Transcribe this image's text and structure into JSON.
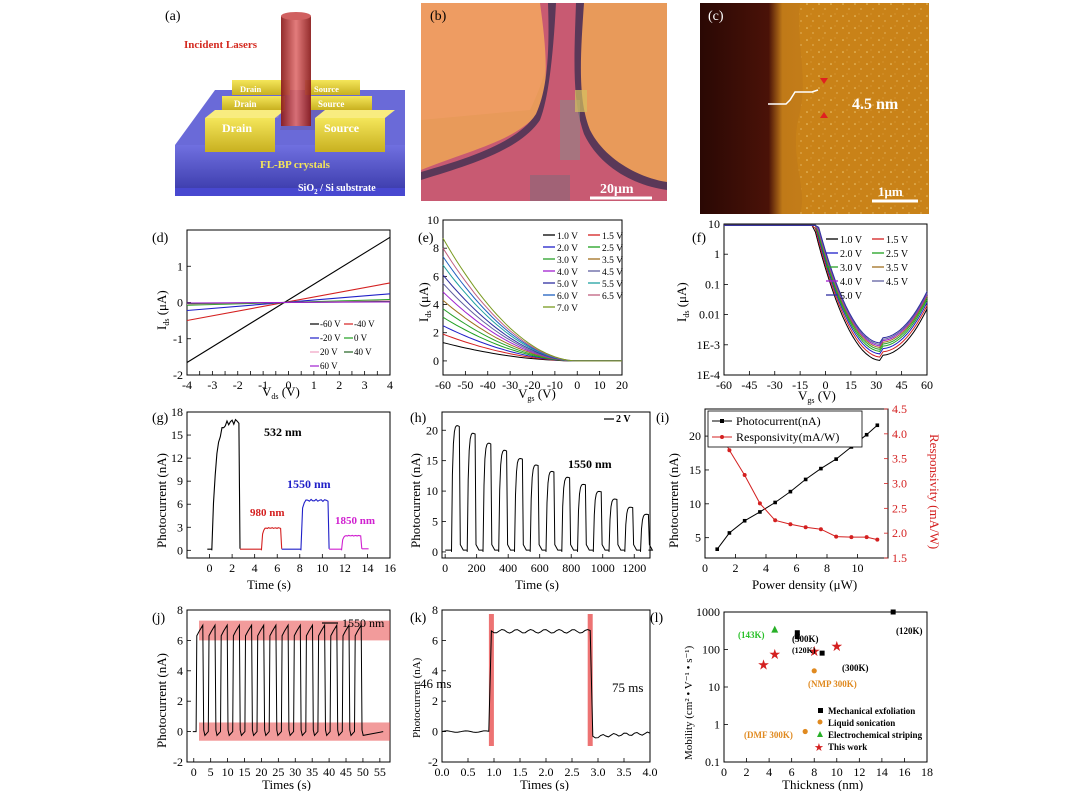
{
  "panels": {
    "a": {
      "letter": "(a)",
      "incident": "Incident Lasers",
      "drain": "Drain",
      "source": "Source",
      "crystal": "FL-BP crystals",
      "substrate_pre": "SiO",
      "substrate_sub": "2",
      "substrate_post": " / Si substrate",
      "colors": {
        "laser": "#b03030",
        "gold": "#e6d23a",
        "substrate": "#5a5ad8",
        "label_red": "#d42a20"
      }
    },
    "b": {
      "letter": "(b)",
      "scalebar": "20μm",
      "colors": {
        "bg": "#e89a5a",
        "flake": "#c85a72"
      }
    },
    "c": {
      "letter": "(c)",
      "thickness": "4.5 nm",
      "scalebar": "1μm",
      "colors": {
        "dark": "#3a0a06",
        "bright": "#c8801a"
      }
    },
    "d": {
      "letter": "(d)",
      "xlabel_main": "V",
      "xlabel_sub": "ds",
      "xlabel_unit": " (V)",
      "ylabel_main": "I",
      "ylabel_sub": "ds",
      "ylabel_unit": " (μA)"
    },
    "e": {
      "letter": "(e)",
      "xlabel_main": "V",
      "xlabel_sub": "gs",
      "xlabel_unit": " (V)",
      "ylabel_main": "I",
      "ylabel_sub": "ds",
      "ylabel_unit": " (μA)"
    },
    "f": {
      "letter": "(f)",
      "xlabel_main": "V",
      "xlabel_sub": "gs",
      "xlabel_unit": " (V)",
      "ylabel_main": "I",
      "ylabel_sub": "ds",
      "ylabel_unit": " (μA)"
    },
    "g": {
      "letter": "(g)",
      "xlabel": "Time (s)",
      "ylabel": "Photocurrent (nA)",
      "annotations": [
        {
          "text": "532 nm",
          "color": "#000000"
        },
        {
          "text": "980 nm",
          "color": "#d42020"
        },
        {
          "text": "1550 nm",
          "color": "#2020c8"
        },
        {
          "text": "1850 nm",
          "color": "#d020d0"
        }
      ]
    },
    "h": {
      "letter": "(h)",
      "xlabel": "Time (s)",
      "ylabel": "Photocurrent (nA)",
      "legend": "2 V",
      "annotation": "1550 nm"
    },
    "i": {
      "letter": "(i)",
      "xlabel": "Power density (μW)",
      "ylabel": "Photocurrent (nA)",
      "ylabel_right": "Responsivity (mA/W)",
      "legend": [
        "Photocurrent(nA)",
        "Responsivity(mA/W)"
      ]
    },
    "j": {
      "letter": "(j)",
      "xlabel": "Times (s)",
      "ylabel": "Photocurrent (nA)",
      "legend": "1550 nm"
    },
    "k": {
      "letter": "(k)",
      "xlabel": "Times (s)",
      "ylabel": "Photocurrent (nA)",
      "rise": "46 ms",
      "fall": "75 ms"
    },
    "l": {
      "letter": "(l)",
      "xlabel": "Thickness (nm)",
      "ylabel": "Mobility (cm² • V⁻¹ • s⁻¹)",
      "legend": [
        {
          "text": "Mechanical exfoliation",
          "color": "#000000",
          "marker": "square"
        },
        {
          "text": "Liquid sonication",
          "color": "#e08a20",
          "marker": "circle"
        },
        {
          "text": "Electrochemical striping",
          "color": "#28b028",
          "marker": "triangle"
        },
        {
          "text": "This work",
          "color": "#d42020",
          "marker": "star"
        }
      ],
      "annotations": [
        {
          "text": "(143K)",
          "color": "#28c028"
        },
        {
          "text": "(300K)",
          "color": "#000000"
        },
        {
          "text": "(120K)",
          "color": "#000000"
        },
        {
          "text": "(300K)",
          "color": "#000000"
        },
        {
          "text": "(120K)",
          "color": "#000000"
        },
        {
          "text": "(NMP 300K)",
          "color": "#e08a20"
        },
        {
          "text": "(DMF 300K)",
          "color": "#e08a20"
        }
      ]
    }
  },
  "chart_data": [
    {
      "id": "d",
      "type": "line",
      "xlim": [
        -4,
        4
      ],
      "ylim": [
        -2,
        2
      ],
      "xticks": [
        -4,
        -3.5,
        -3,
        -2.5,
        -2,
        -1.5,
        -1,
        -0.5,
        0,
        0.5,
        1,
        1.5,
        2,
        2.5,
        3,
        3.5,
        4
      ],
      "xtick_labels": [
        "-4",
        "",
        "-3",
        "",
        "-2",
        "",
        "-1",
        "",
        "0",
        "",
        "1",
        "",
        "2",
        "",
        "3",
        "",
        "4"
      ],
      "yticks": [
        -2,
        -1,
        0,
        1
      ],
      "ytick_labels": [
        "-2",
        "-1",
        "0",
        "1"
      ],
      "series": [
        {
          "name": "-60 V",
          "color": "#000000",
          "slope": 0.45
        },
        {
          "name": "-40 V",
          "color": "#d42020",
          "slope": 0.135
        },
        {
          "name": "-20 V",
          "color": "#2020c8",
          "slope": 0.06
        },
        {
          "name": "0 V",
          "color": "#20a020",
          "slope": 0.02
        },
        {
          "name": "20 V",
          "color": "#f0a0c0",
          "slope": 0.012
        },
        {
          "name": "40 V",
          "color": "#206020",
          "slope": 0.007
        },
        {
          "name": "60 V",
          "color": "#a020d0",
          "slope": 0.004
        }
      ]
    },
    {
      "id": "e",
      "type": "line",
      "xlim": [
        -60,
        20
      ],
      "ylim": [
        -1,
        10
      ],
      "xticks": [
        -60,
        -50,
        -40,
        -30,
        -20,
        -10,
        0,
        10,
        20
      ],
      "yticks": [
        0,
        2,
        4,
        6,
        8,
        10
      ],
      "series": [
        {
          "name": "1.0 V",
          "color": "#000000",
          "amp": 1.3
        },
        {
          "name": "1.5 V",
          "color": "#d42020",
          "amp": 1.9
        },
        {
          "name": "2.0 V",
          "color": "#2020c8",
          "amp": 2.5
        },
        {
          "name": "2.5 V",
          "color": "#20a020",
          "amp": 3.1
        },
        {
          "name": "3.0 V",
          "color": "#28a028",
          "amp": 3.7
        },
        {
          "name": "3.5 V",
          "color": "#a07020",
          "amp": 4.3
        },
        {
          "name": "4.0 V",
          "color": "#a020d0",
          "amp": 4.9
        },
        {
          "name": "4.5 V",
          "color": "#6060a0",
          "amp": 5.5
        },
        {
          "name": "5.0 V",
          "color": "#3030a0",
          "amp": 6.1
        },
        {
          "name": "5.5 V",
          "color": "#20a0a0",
          "amp": 6.8
        },
        {
          "name": "6.0 V",
          "color": "#2060c0",
          "amp": 7.4
        },
        {
          "name": "6.5 V",
          "color": "#c06080",
          "amp": 8.0
        },
        {
          "name": "7.0 V",
          "color": "#7a9a20",
          "amp": 8.7
        }
      ]
    },
    {
      "id": "f",
      "type": "line",
      "yscale": "log",
      "xlim": [
        -60,
        60
      ],
      "ylim": [
        0.0001,
        10
      ],
      "xticks": [
        -60,
        -45,
        -30,
        -15,
        0,
        15,
        30,
        45,
        60
      ],
      "yticks": [
        0.0001,
        0.001,
        0.01,
        0.1,
        1,
        10
      ],
      "ytick_labels": [
        "1E-4",
        "1E-3",
        "0.01",
        "0.1",
        "1",
        "10"
      ],
      "series": [
        {
          "name": "1.0 V",
          "color": "#000000",
          "scale": 1.0
        },
        {
          "name": "1.5 V",
          "color": "#d42020",
          "scale": 1.3
        },
        {
          "name": "2.0 V",
          "color": "#2020c8",
          "scale": 1.65
        },
        {
          "name": "2.5 V",
          "color": "#20a020",
          "scale": 2.0
        },
        {
          "name": "3.0 V",
          "color": "#28a028",
          "scale": 2.35
        },
        {
          "name": "3.5 V",
          "color": "#a07020",
          "scale": 2.7
        },
        {
          "name": "4.0 V",
          "color": "#a020d0",
          "scale": 3.05
        },
        {
          "name": "4.5 V",
          "color": "#6060a0",
          "scale": 3.4
        },
        {
          "name": "5.0 V",
          "color": "#3030a0",
          "scale": 3.8
        }
      ]
    },
    {
      "id": "g",
      "type": "line",
      "xlim": [
        -2,
        16
      ],
      "ylim": [
        -1,
        18
      ],
      "xticks": [
        0,
        2,
        4,
        6,
        8,
        10,
        12,
        14,
        16
      ],
      "yticks": [
        0,
        3,
        6,
        9,
        12,
        15,
        18
      ],
      "ytick_labels": [
        "0",
        "3",
        "6",
        "9",
        "12",
        "15",
        "18"
      ],
      "pulses": [
        {
          "label": "532 nm",
          "color": "#000000",
          "on": 0.2,
          "off": 2.6,
          "level": 16.8
        },
        {
          "label": "980 nm",
          "color": "#d42020",
          "on": 4.6,
          "off": 6.3,
          "level": 2.9
        },
        {
          "label": "1550 nm",
          "color": "#2020c8",
          "on": 8.1,
          "off": 10.5,
          "level": 6.5
        },
        {
          "label": "1850 nm",
          "color": "#d020d0",
          "on": 11.7,
          "off": 13.4,
          "level": 1.9
        }
      ]
    },
    {
      "id": "h",
      "type": "line",
      "xlim": [
        -20,
        1300
      ],
      "ylim": [
        -1,
        23
      ],
      "xticks": [
        0,
        200,
        400,
        600,
        800,
        1000,
        1200
      ],
      "yticks": [
        0,
        5,
        10,
        15,
        20
      ],
      "period": 100,
      "on_frac": 0.5,
      "peaks": [
        21.5,
        20.2,
        18.5,
        17.3,
        15.9,
        14.8,
        13.7,
        12.7,
        11.5,
        10.3,
        9.0,
        7.6,
        6.4
      ]
    },
    {
      "id": "i",
      "type": "line",
      "xlim": [
        0,
        12
      ],
      "ylim": [
        2,
        24
      ],
      "y2lim": [
        1.5,
        4.5
      ],
      "xticks": [
        0,
        2,
        4,
        6,
        8,
        10
      ],
      "yticks": [
        5,
        10,
        15,
        20
      ],
      "y2ticks": [
        1.5,
        2.0,
        2.5,
        3.0,
        3.5,
        4.0,
        4.5
      ],
      "series": [
        {
          "name": "Photocurrent(nA)",
          "color": "#000000",
          "axis": "left",
          "x": [
            0.8,
            1.6,
            2.6,
            3.6,
            4.6,
            5.6,
            6.6,
            7.6,
            8.6,
            9.6,
            10.6,
            11.3
          ],
          "y": [
            3.3,
            5.7,
            7.5,
            8.8,
            10.2,
            11.8,
            13.6,
            15.2,
            16.6,
            18.4,
            20.2,
            21.6
          ]
        },
        {
          "name": "Responsivity(mA/W)",
          "color": "#d42020",
          "axis": "right",
          "x": [
            0.8,
            1.6,
            2.6,
            3.6,
            4.6,
            5.6,
            6.6,
            7.6,
            8.6,
            9.6,
            10.6,
            11.3
          ],
          "y": [
            4.13,
            3.67,
            3.17,
            2.6,
            2.26,
            2.18,
            2.12,
            2.08,
            1.93,
            1.92,
            1.92,
            1.87
          ]
        }
      ]
    },
    {
      "id": "j",
      "type": "line",
      "xlim": [
        -2,
        58
      ],
      "ylim": [
        -2,
        8
      ],
      "xticks": [
        0,
        5,
        10,
        15,
        20,
        25,
        30,
        35,
        40,
        45,
        50,
        55
      ],
      "yticks": [
        -2,
        0,
        2,
        4,
        6,
        8
      ],
      "period": 3.6,
      "cycles": 14,
      "level": 6.6
    },
    {
      "id": "k",
      "type": "line",
      "xlim": [
        0,
        4
      ],
      "ylim": [
        -2,
        8
      ],
      "xticks": [
        0,
        0.5,
        1,
        1.5,
        2,
        2.5,
        3,
        3.5,
        4
      ],
      "xtick_labels": [
        "0.0",
        "0.5",
        "1.0",
        "1.5",
        "2.0",
        "2.5",
        "3.0",
        "3.5",
        "4.0"
      ],
      "yticks": [
        -2,
        0,
        2,
        4,
        6,
        8
      ],
      "on": 0.95,
      "off": 2.85,
      "level": 6.6
    },
    {
      "id": "l",
      "type": "scatter",
      "yscale": "log",
      "xlim": [
        0,
        18
      ],
      "ylim": [
        0.1,
        1000
      ],
      "xticks": [
        0,
        2,
        4,
        6,
        8,
        10,
        12,
        14,
        16,
        18
      ],
      "yticks": [
        0.1,
        1,
        10,
        100,
        1000
      ],
      "ytick_labels": [
        "0.1",
        "1",
        "10",
        "100",
        "1000"
      ],
      "series": [
        {
          "name": "Mechanical exfoliation",
          "marker": "square",
          "color": "#000000",
          "x": [
            6.5,
            6.5,
            8.7,
            15
          ],
          "y": [
            280,
            220,
            80,
            1000
          ]
        },
        {
          "name": "Liquid sonication",
          "marker": "circle",
          "color": "#e08a20",
          "x": [
            8.0,
            7.2
          ],
          "y": [
            27,
            0.65
          ]
        },
        {
          "name": "Electrochemical striping",
          "marker": "triangle",
          "color": "#28b028",
          "x": [
            4.5
          ],
          "y": [
            340
          ]
        },
        {
          "name": "This work",
          "marker": "star",
          "color": "#d42020",
          "x": [
            3.5,
            4.5,
            8,
            10
          ],
          "y": [
            40,
            75,
            90,
            125
          ]
        }
      ]
    }
  ]
}
